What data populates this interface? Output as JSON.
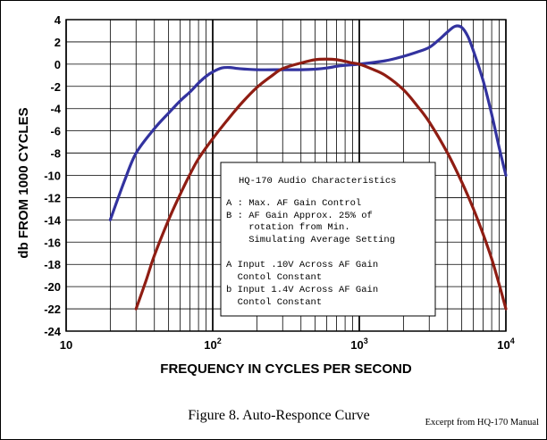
{
  "chart_data": {
    "type": "line",
    "xscale": "log",
    "xlim": [
      10,
      10000
    ],
    "ylim": [
      -24,
      4
    ],
    "grid": true,
    "xlabel": "FREQUENCY IN CYCLES PER SECOND",
    "ylabel": "db FROM 1000 CYCLES",
    "xticks": [
      {
        "base": "10",
        "exp": ""
      },
      {
        "base": "10",
        "exp": "2"
      },
      {
        "base": "10",
        "exp": "3"
      },
      {
        "base": "10",
        "exp": "4"
      }
    ],
    "yticks": [
      4,
      2,
      0,
      -2,
      -4,
      -6,
      -8,
      -10,
      -12,
      -14,
      -16,
      -18,
      -20,
      -22,
      -24
    ],
    "series": [
      {
        "color": "#33339f",
        "points": [
          [
            20,
            -14
          ],
          [
            25,
            -10.5
          ],
          [
            30,
            -8
          ],
          [
            40,
            -5.8
          ],
          [
            50,
            -4.4
          ],
          [
            60,
            -3.3
          ],
          [
            70,
            -2.5
          ],
          [
            80,
            -1.7
          ],
          [
            90,
            -1.1
          ],
          [
            100,
            -0.7
          ],
          [
            115,
            -0.35
          ],
          [
            130,
            -0.3
          ],
          [
            150,
            -0.4
          ],
          [
            200,
            -0.5
          ],
          [
            300,
            -0.5
          ],
          [
            400,
            -0.5
          ],
          [
            500,
            -0.45
          ],
          [
            600,
            -0.35
          ],
          [
            700,
            -0.2
          ],
          [
            800,
            -0.1
          ],
          [
            1000,
            0
          ],
          [
            1500,
            0.3
          ],
          [
            2000,
            0.7
          ],
          [
            2500,
            1.1
          ],
          [
            3000,
            1.5
          ],
          [
            3500,
            2.2
          ],
          [
            4000,
            2.9
          ],
          [
            4500,
            3.4
          ],
          [
            5000,
            3.3
          ],
          [
            5500,
            2.5
          ],
          [
            6000,
            1.2
          ],
          [
            7000,
            -1.5
          ],
          [
            8000,
            -4.5
          ],
          [
            9000,
            -7.5
          ],
          [
            10000,
            -10
          ]
        ]
      },
      {
        "color": "#8f1d13",
        "points": [
          [
            30,
            -22
          ],
          [
            35,
            -19.5
          ],
          [
            40,
            -17.2
          ],
          [
            50,
            -14
          ],
          [
            60,
            -11.7
          ],
          [
            70,
            -9.9
          ],
          [
            80,
            -8.5
          ],
          [
            100,
            -6.7
          ],
          [
            130,
            -4.8
          ],
          [
            160,
            -3.4
          ],
          [
            200,
            -2.1
          ],
          [
            250,
            -1.1
          ],
          [
            300,
            -0.4
          ],
          [
            400,
            0.1
          ],
          [
            500,
            0.4
          ],
          [
            600,
            0.45
          ],
          [
            700,
            0.4
          ],
          [
            800,
            0.25
          ],
          [
            900,
            0.1
          ],
          [
            1000,
            0
          ],
          [
            1200,
            -0.4
          ],
          [
            1500,
            -1
          ],
          [
            2000,
            -2.3
          ],
          [
            2500,
            -3.8
          ],
          [
            3000,
            -5.2
          ],
          [
            4000,
            -8
          ],
          [
            5000,
            -10.6
          ],
          [
            6000,
            -13
          ],
          [
            7000,
            -15.3
          ],
          [
            8000,
            -17.5
          ],
          [
            9000,
            -19.8
          ],
          [
            10000,
            -22
          ]
        ]
      }
    ],
    "legend": {
      "title": "HQ-170 Audio Characteristics",
      "lines": [
        "A : Max. AF Gain Control",
        "B : AF Gain Approx. 25% of",
        "    rotation from Min.",
        "    Simulating Average Setting",
        "",
        "A Input .10V Across AF Gain",
        "  Contol Constant",
        "b Input 1.4V Across AF Gain",
        "  Contol Constant"
      ]
    }
  },
  "caption": "Figure 8. Auto-Responce Curve",
  "credit": "Excerpt from HQ-170 Manual"
}
